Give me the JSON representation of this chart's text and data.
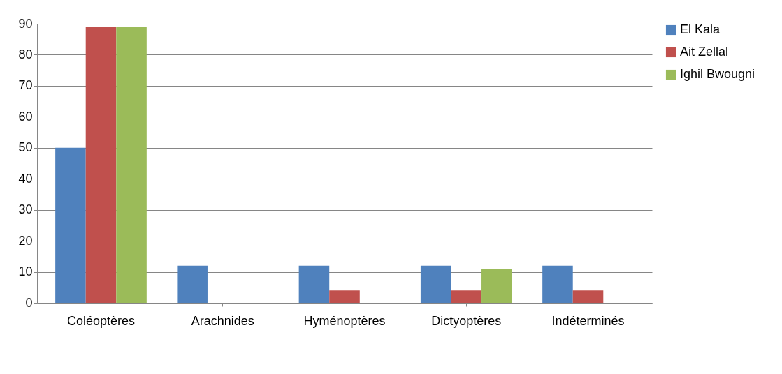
{
  "chart_data": {
    "type": "bar",
    "categories": [
      "Coléoptères",
      "Arachnides",
      "Hyménoptères",
      "Dictyoptères",
      "Indéterminés"
    ],
    "series": [
      {
        "name": "El Kala",
        "color": "#4f81bd",
        "values": [
          50,
          12,
          12,
          12,
          12
        ]
      },
      {
        "name": "Ait Zellal",
        "color": "#c0504d",
        "values": [
          89,
          0,
          4,
          4,
          4
        ]
      },
      {
        "name": "Ighil Bwougni",
        "color": "#9bbb59",
        "values": [
          89,
          0,
          0,
          11,
          0
        ]
      }
    ],
    "ylim": [
      0,
      90
    ],
    "yticks": [
      0,
      10,
      20,
      30,
      40,
      50,
      60,
      70,
      80,
      90
    ],
    "grid": "y",
    "legend": "right"
  }
}
